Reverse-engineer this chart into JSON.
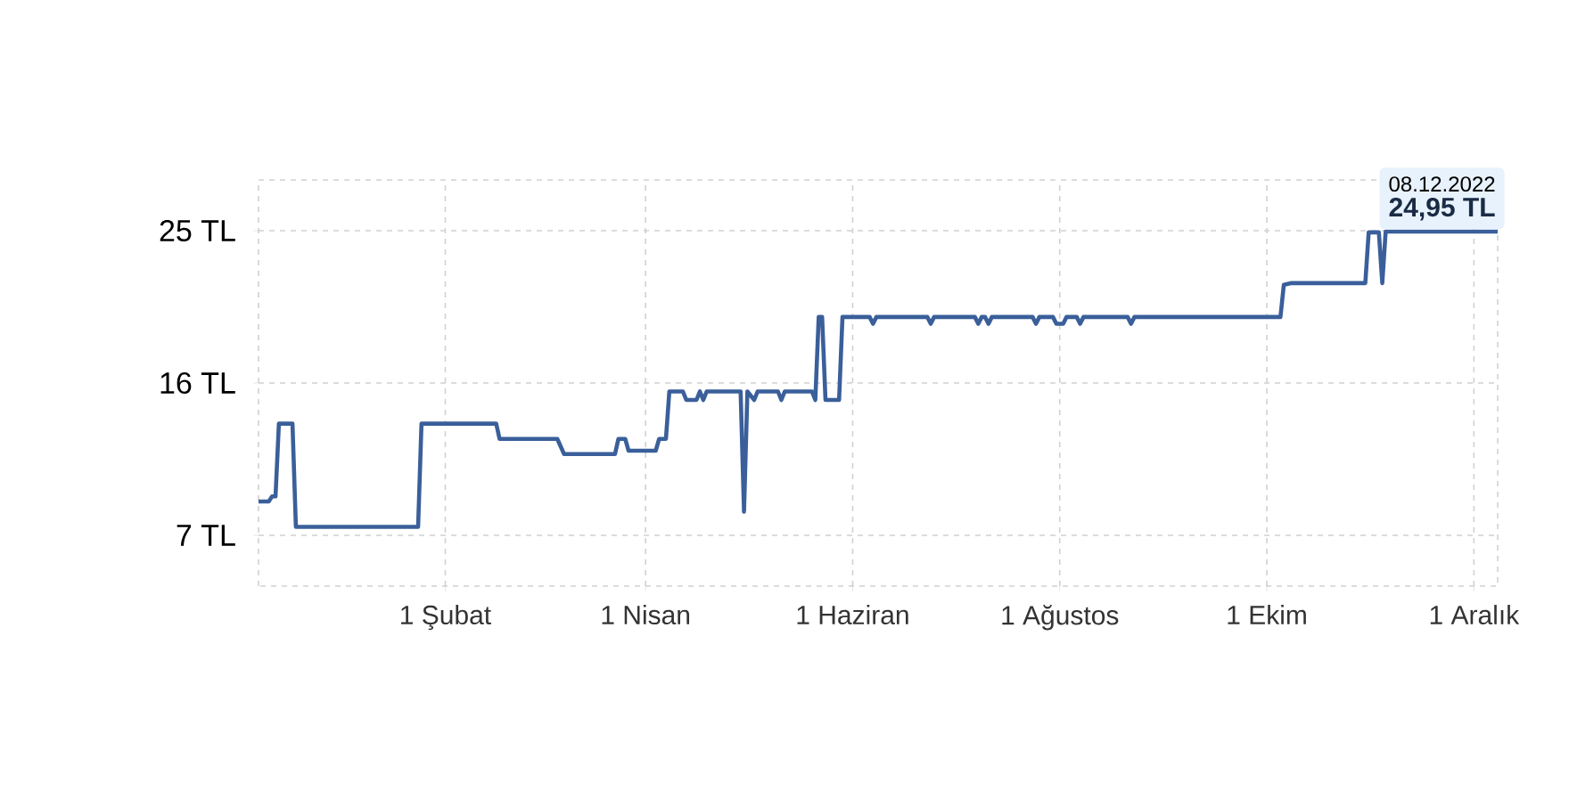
{
  "chart_data": {
    "type": "line",
    "xlim": [
      "2021-12-08",
      "2022-12-08"
    ],
    "ylim": [
      4,
      28
    ],
    "xticks": [
      {
        "value": "2022-02-01",
        "label": "1 Şubat"
      },
      {
        "value": "2022-04-01",
        "label": "1 Nisan"
      },
      {
        "value": "2022-06-01",
        "label": "1 Haziran"
      },
      {
        "value": "2022-08-01",
        "label": "1 Ağustos"
      },
      {
        "value": "2022-10-01",
        "label": "1 Ekim"
      },
      {
        "value": "2022-12-01",
        "label": "1 Aralık"
      }
    ],
    "yticks": [
      {
        "value": 7,
        "label": "7 TL"
      },
      {
        "value": 16,
        "label": "16 TL"
      },
      {
        "value": 25,
        "label": "25 TL"
      }
    ],
    "grid": true,
    "line_style": "solid",
    "annotations": [
      {
        "text": "08.12.2022",
        "x": "2022-12-08",
        "y": 24.95
      },
      "24,95 TL"
    ],
    "series": [
      {
        "color": "#3a5f9a",
        "x": [
          "2021-12-08",
          "2021-12-11",
          "2021-12-12",
          "2021-12-13",
          "2021-12-14",
          "2021-12-18",
          "2021-12-19",
          "2022-01-24",
          "2022-01-25",
          "2022-02-16",
          "2022-02-17",
          "2022-03-06",
          "2022-03-08",
          "2022-03-23",
          "2022-03-24",
          "2022-03-26",
          "2022-03-27",
          "2022-04-04",
          "2022-04-05",
          "2022-04-07",
          "2022-04-08",
          "2022-04-12",
          "2022-04-13",
          "2022-04-16",
          "2022-04-17",
          "2022-04-18",
          "2022-04-19",
          "2022-04-29",
          "2022-04-30",
          "2022-05-01",
          "2022-05-03",
          "2022-05-04",
          "2022-05-10",
          "2022-05-11",
          "2022-05-12",
          "2022-05-20",
          "2022-05-21",
          "2022-05-22",
          "2022-05-23",
          "2022-05-24",
          "2022-05-28",
          "2022-05-29",
          "2022-06-06",
          "2022-06-07",
          "2022-06-08",
          "2022-06-23",
          "2022-06-24",
          "2022-06-25",
          "2022-07-07",
          "2022-07-08",
          "2022-07-09",
          "2022-07-10",
          "2022-07-11",
          "2022-07-12",
          "2022-07-24",
          "2022-07-25",
          "2022-07-26",
          "2022-07-30",
          "2022-07-31",
          "2022-08-02",
          "2022-08-03",
          "2022-08-06",
          "2022-08-07",
          "2022-08-08",
          "2022-08-21",
          "2022-08-22",
          "2022-08-23",
          "2022-10-05",
          "2022-10-06",
          "2022-10-08",
          "2022-10-30",
          "2022-10-31",
          "2022-11-03",
          "2022-11-04",
          "2022-11-05",
          "2022-12-08"
        ],
        "values": [
          9.0,
          9.0,
          9.3,
          9.3,
          13.6,
          13.6,
          7.5,
          7.5,
          13.6,
          13.6,
          12.7,
          12.7,
          11.8,
          11.8,
          12.7,
          12.7,
          12.0,
          12.0,
          12.7,
          12.7,
          15.5,
          15.5,
          15.0,
          15.0,
          15.5,
          15.0,
          15.5,
          15.5,
          8.4,
          15.5,
          15.0,
          15.5,
          15.5,
          15.0,
          15.5,
          15.5,
          15.0,
          19.9,
          19.9,
          15.0,
          15.0,
          19.9,
          19.9,
          19.5,
          19.9,
          19.9,
          19.5,
          19.9,
          19.9,
          19.5,
          19.9,
          19.9,
          19.5,
          19.9,
          19.9,
          19.5,
          19.9,
          19.9,
          19.5,
          19.5,
          19.9,
          19.9,
          19.5,
          19.9,
          19.9,
          19.5,
          19.9,
          19.9,
          21.8,
          21.9,
          21.9,
          24.9,
          24.9,
          21.9,
          24.95,
          24.95
        ]
      }
    ]
  }
}
